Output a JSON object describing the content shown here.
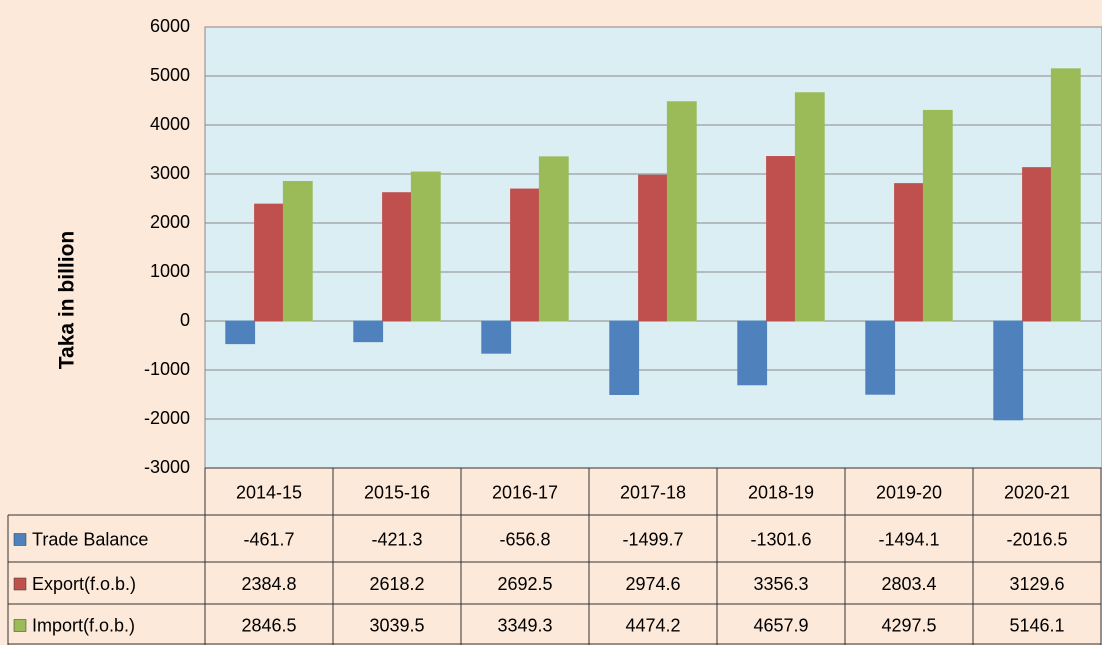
{
  "chart_data": {
    "type": "bar",
    "y_axis_label": "Taka in billion",
    "categories": [
      "2014-15",
      "2015-16",
      "2016-17",
      "2017-18",
      "2018-19",
      "2019-20",
      "2020-21"
    ],
    "series": [
      {
        "name": "Trade Balance",
        "color": "#4f81bd",
        "values": [
          -461.7,
          -421.3,
          -656.8,
          -1499.7,
          -1301.6,
          -1494.1,
          -2016.5
        ]
      },
      {
        "name": "Export(f.o.b.)",
        "color": "#c0504d",
        "values": [
          2384.8,
          2618.2,
          2692.5,
          2974.6,
          3356.3,
          2803.4,
          3129.6
        ]
      },
      {
        "name": "Import(f.o.b.)",
        "color": "#9bbb59",
        "values": [
          2846.5,
          3039.5,
          3349.3,
          4474.2,
          4657.9,
          4297.5,
          5146.1
        ]
      }
    ],
    "ylim": [
      -3000,
      6000
    ],
    "yticks": [
      -3000,
      -2000,
      -1000,
      0,
      1000,
      2000,
      3000,
      4000,
      5000,
      6000
    ],
    "grid": true,
    "legend": "data-table"
  }
}
